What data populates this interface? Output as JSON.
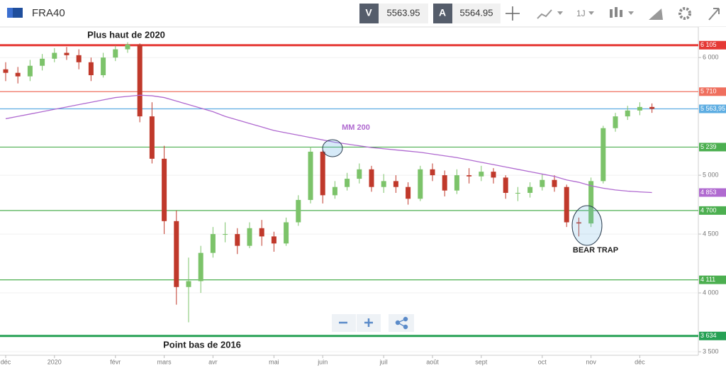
{
  "toolbar": {
    "symbol": "FRA40",
    "sell_label": "V",
    "sell_price": 5563.95,
    "buy_label": "A",
    "buy_price": 5564.95,
    "timeframe": "1J"
  },
  "chart_data": {
    "type": "candlestick",
    "categories": [
      "déc",
      null,
      null,
      null,
      "2020",
      null,
      null,
      null,
      null,
      "févr",
      null,
      null,
      null,
      "mars",
      null,
      null,
      null,
      "avr",
      null,
      null,
      null,
      null,
      "mai",
      null,
      null,
      null,
      "juin",
      null,
      null,
      null,
      null,
      "juil",
      null,
      null,
      null,
      "août",
      null,
      null,
      null,
      "sept",
      null,
      null,
      null,
      null,
      "oct",
      null,
      null,
      null,
      "nov",
      null,
      null,
      null,
      "déc",
      null
    ],
    "open": [
      5900,
      5870,
      5840,
      5930,
      5990,
      6040,
      6020,
      5960,
      5850,
      6000,
      6070,
      6110,
      5500,
      5140,
      4610,
      4050,
      4100,
      4340,
      4500,
      4500,
      4400,
      4550,
      4480,
      4420,
      4600,
      4790,
      5200,
      4830,
      4900,
      4970,
      5050,
      4900,
      4950,
      4900,
      4800,
      5050,
      5000,
      4870,
      5000,
      4990,
      5030,
      4980,
      4850,
      4850,
      4900,
      4960,
      4900,
      4600,
      4590,
      4950,
      5400,
      5500,
      5550,
      5580
    ],
    "high": [
      5960,
      5920,
      5980,
      6030,
      6080,
      6090,
      6070,
      6000,
      6040,
      6100,
      6130,
      6120,
      5620,
      5250,
      4700,
      4300,
      4400,
      4560,
      4600,
      4550,
      4600,
      4620,
      4520,
      4640,
      4830,
      5240,
      5210,
      4950,
      5020,
      5100,
      5080,
      5010,
      5000,
      4940,
      5080,
      5100,
      5040,
      5050,
      5060,
      5080,
      5060,
      5000,
      4900,
      4940,
      5010,
      5000,
      4920,
      4640,
      4980,
      5420,
      5530,
      5590,
      5620,
      5610
    ],
    "low": [
      5800,
      5780,
      5800,
      5890,
      5960,
      5980,
      5900,
      5800,
      5830,
      5970,
      6040,
      5450,
      5100,
      4500,
      3900,
      3750,
      4000,
      4300,
      4430,
      4330,
      4380,
      4400,
      4350,
      4400,
      4570,
      4760,
      4760,
      4800,
      4870,
      4930,
      4860,
      4850,
      4850,
      4750,
      4780,
      4950,
      4820,
      4840,
      4930,
      4950,
      4930,
      4800,
      4780,
      4810,
      4870,
      4860,
      4560,
      4480,
      4560,
      4930,
      5370,
      5470,
      5510,
      5530
    ],
    "close": [
      5870,
      5840,
      5930,
      5990,
      6040,
      6020,
      5960,
      5850,
      6000,
      6070,
      6110,
      5500,
      5140,
      4610,
      4050,
      4100,
      4340,
      4500,
      4500,
      4400,
      4550,
      4480,
      4420,
      4600,
      4790,
      5200,
      4830,
      4900,
      4970,
      5050,
      4900,
      4950,
      4900,
      4800,
      5050,
      5000,
      4870,
      5000,
      4990,
      5030,
      4980,
      4850,
      4850,
      4900,
      4960,
      4900,
      4600,
      4590,
      4950,
      5400,
      5500,
      5550,
      5580,
      5564
    ],
    "up_color": "#7cc36a",
    "down_color": "#c0392b",
    "series": [
      {
        "name": "MM 200",
        "color": "#b06ad0",
        "values": [
          5480,
          5500,
          5520,
          5540,
          5560,
          5580,
          5600,
          5620,
          5640,
          5660,
          5670,
          5680,
          5675,
          5660,
          5630,
          5600,
          5570,
          5540,
          5500,
          5470,
          5440,
          5410,
          5380,
          5360,
          5340,
          5320,
          5300,
          5280,
          5265,
          5250,
          5235,
          5225,
          5215,
          5205,
          5195,
          5180,
          5165,
          5150,
          5130,
          5110,
          5090,
          5070,
          5050,
          5030,
          5010,
          4990,
          4960,
          4940,
          4910,
          4890,
          4875,
          4865,
          4858,
          4853
        ],
        "last_label": {
          "value": 4853,
          "label": "4 853"
        }
      }
    ],
    "levels": [
      {
        "value": 6105,
        "label": "6 105",
        "color": "#e53935"
      },
      {
        "value": 5710,
        "label": "5 710",
        "color": "#ef6f5e"
      },
      {
        "value": 5563.95,
        "label": "5 563,95",
        "color": "#5dade2"
      },
      {
        "value": 5239,
        "label": "5 239",
        "color": "#4caf50"
      },
      {
        "value": 4700,
        "label": "4 700",
        "color": "#4caf50"
      },
      {
        "value": 4111,
        "label": "4 111",
        "color": "#4caf50"
      },
      {
        "value": 3634,
        "label": "3 634",
        "color": "#27a155"
      }
    ],
    "annotations": [
      "Plus haut de 2020",
      "Point bas de 2016",
      "BEAR TRAP"
    ],
    "ylim": [
      3470,
      6260
    ],
    "yticks": [
      {
        "value": 6000,
        "label": "6 000"
      },
      {
        "value": 5000,
        "label": "5 000"
      },
      {
        "value": 4500,
        "label": "4 500"
      },
      {
        "value": 4000,
        "label": "4 000"
      },
      {
        "value": 3500,
        "label": "3 500"
      }
    ]
  }
}
